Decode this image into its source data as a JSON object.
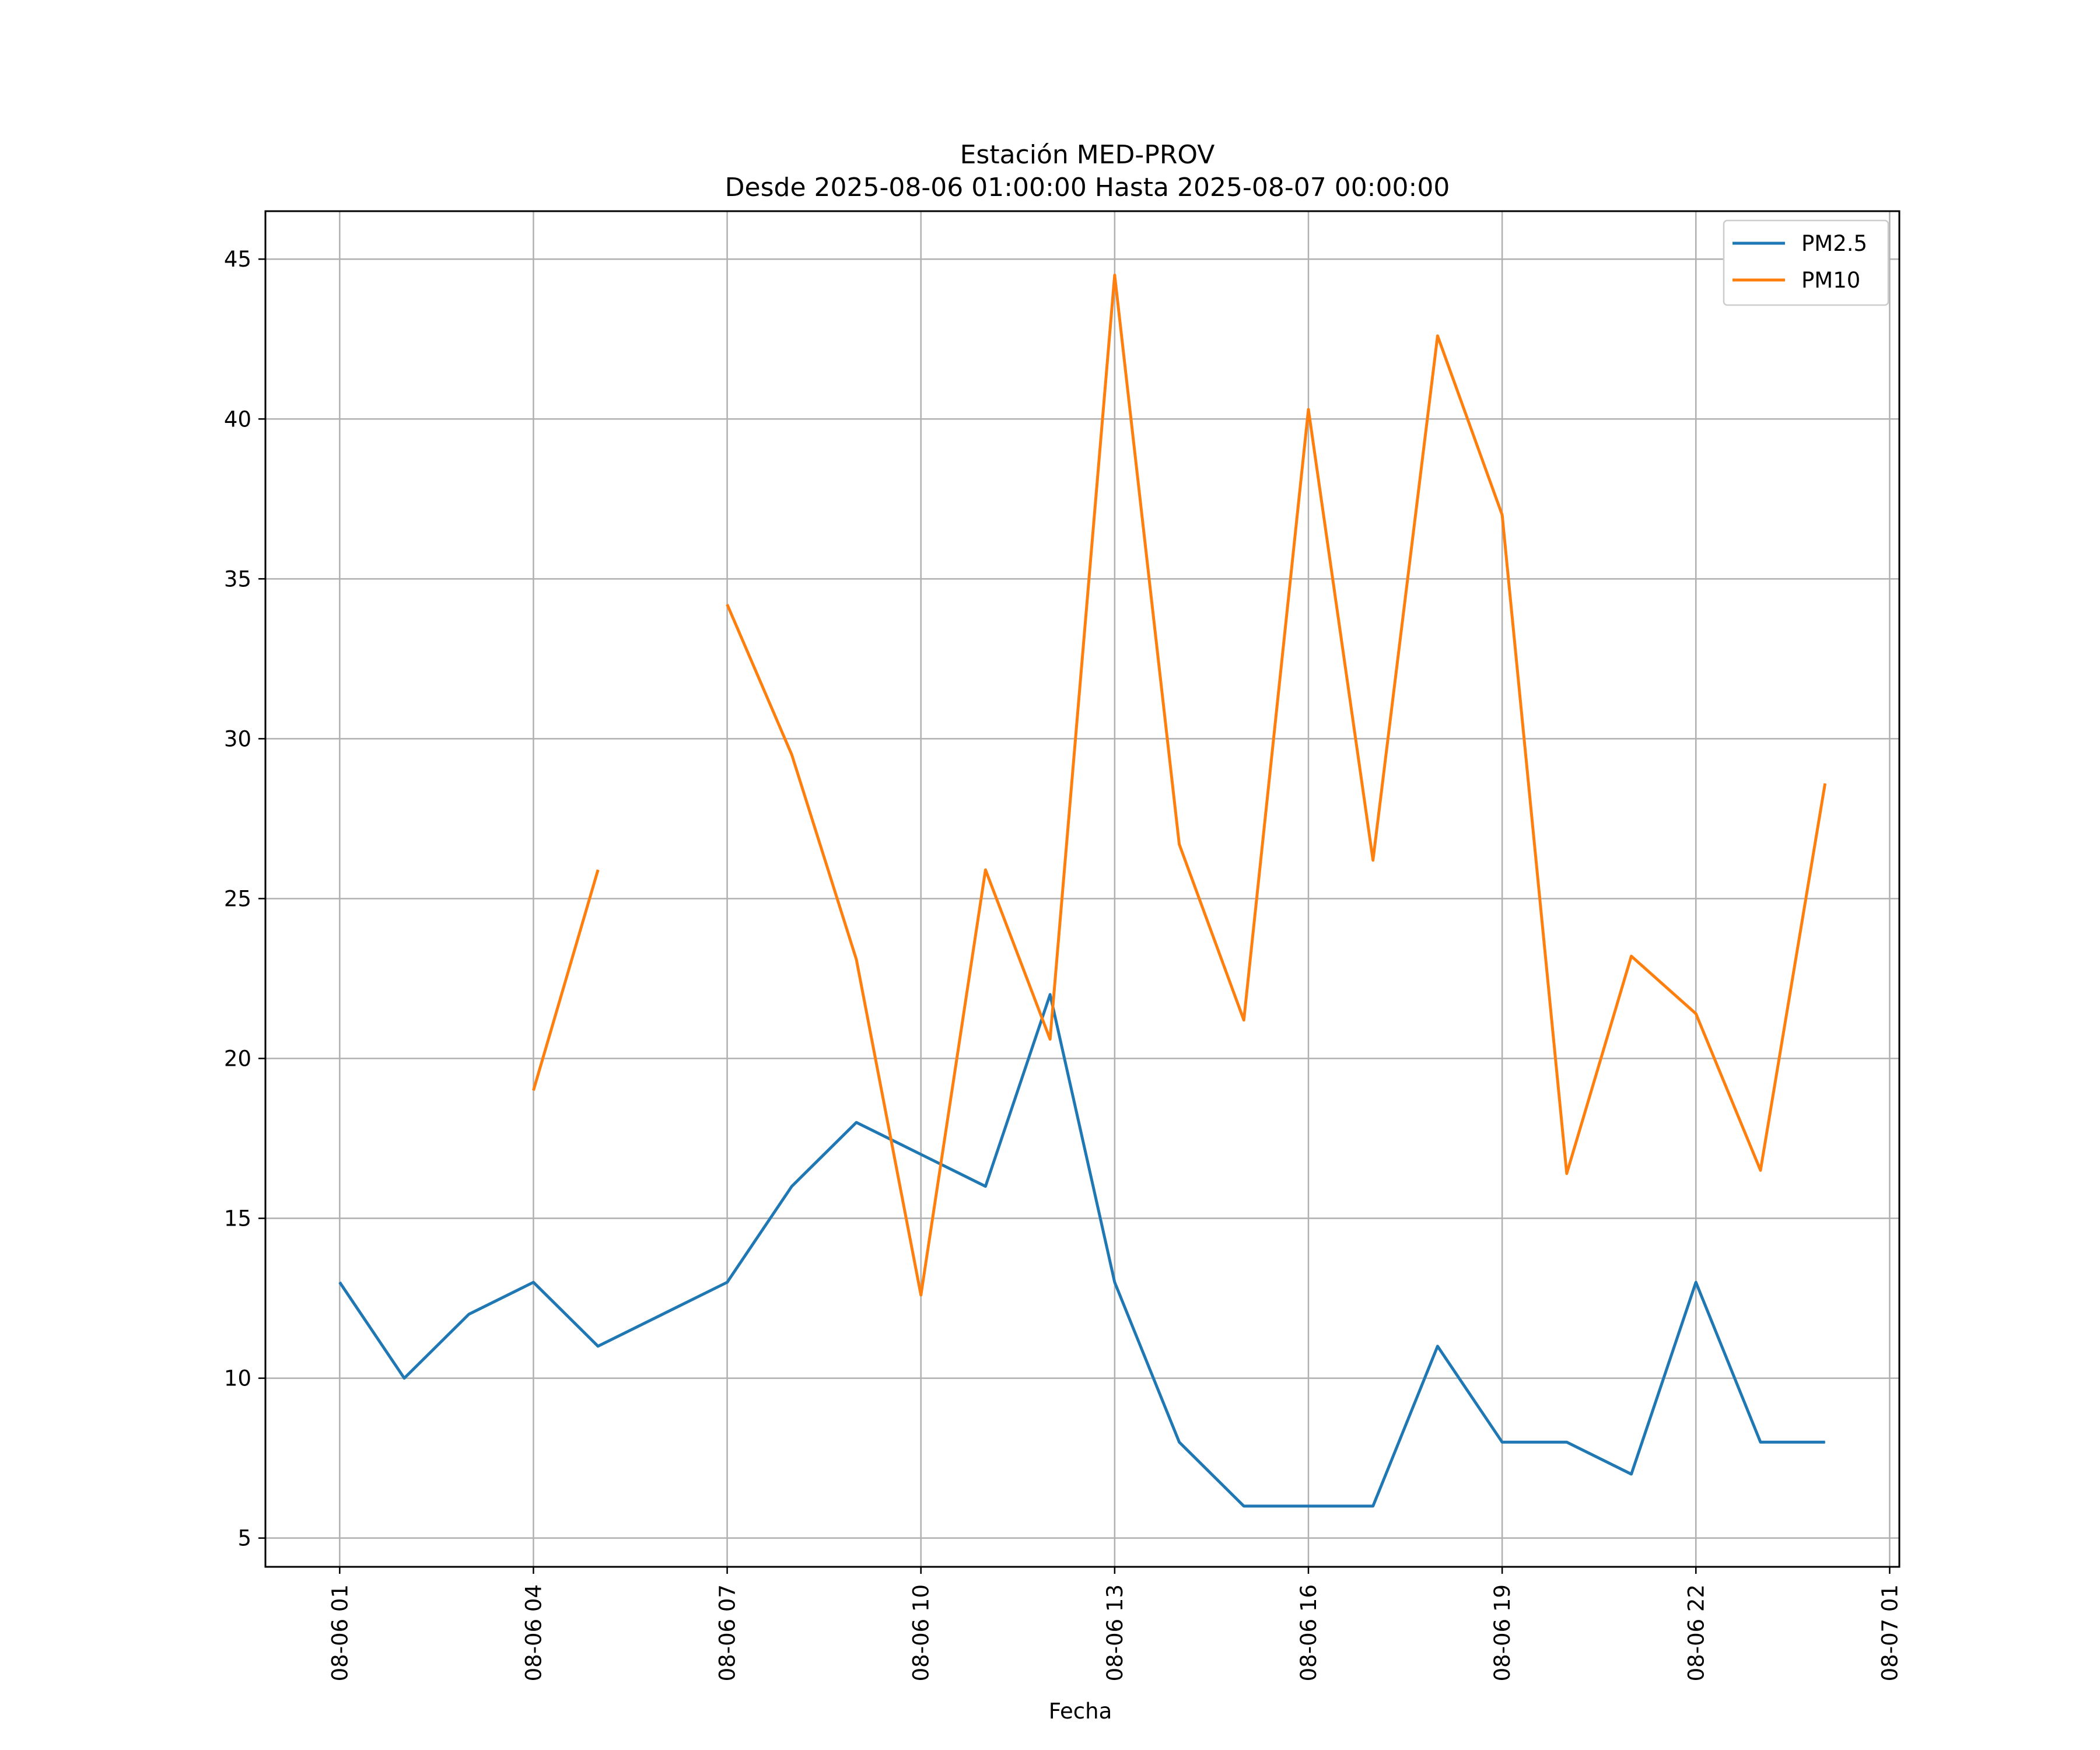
{
  "chart_data": {
    "type": "line",
    "title": "Estación MED-PROV",
    "subtitle": "Desde 2025-08-06 01:00:00 Hasta 2025-08-07 00:00:00",
    "xlabel": "Fecha",
    "ylabel": "",
    "x": [
      "08-06 01",
      "08-06 02",
      "08-06 03",
      "08-06 04",
      "08-06 05",
      "08-06 06",
      "08-06 07",
      "08-06 08",
      "08-06 09",
      "08-06 10",
      "08-06 11",
      "08-06 12",
      "08-06 13",
      "08-06 14",
      "08-06 15",
      "08-06 16",
      "08-06 17",
      "08-06 18",
      "08-06 19",
      "08-06 20",
      "08-06 21",
      "08-06 22",
      "08-06 23",
      "08-07 00"
    ],
    "xlim": [
      -1.15,
      24.15
    ],
    "xticks": [
      0,
      3,
      6,
      9,
      12,
      15,
      18,
      21,
      24
    ],
    "xtick_labels": [
      "08-06 01",
      "08-06 04",
      "08-06 07",
      "08-06 10",
      "08-06 13",
      "08-06 16",
      "08-06 19",
      "08-06 22",
      "08-07 01"
    ],
    "ylim": [
      4.1,
      46.5
    ],
    "yticks": [
      5,
      10,
      15,
      20,
      25,
      30,
      35,
      40,
      45
    ],
    "grid": true,
    "legend_position": "top-right",
    "series": [
      {
        "name": "PM2.5",
        "color": "#1f77b4",
        "values": [
          13,
          10,
          12,
          13,
          11,
          12,
          13,
          16,
          18,
          17,
          16,
          22,
          13,
          8,
          6,
          6,
          6,
          11,
          8,
          8,
          7,
          13,
          8,
          8
        ]
      },
      {
        "name": "PM10",
        "color": "#ff7f0e",
        "values": [
          null,
          null,
          null,
          19.0,
          25.9,
          null,
          34.2,
          29.5,
          23.1,
          12.6,
          25.9,
          20.6,
          44.5,
          26.7,
          21.2,
          40.3,
          26.2,
          42.6,
          37.0,
          16.4,
          23.2,
          21.4,
          16.5,
          28.6
        ]
      }
    ]
  }
}
